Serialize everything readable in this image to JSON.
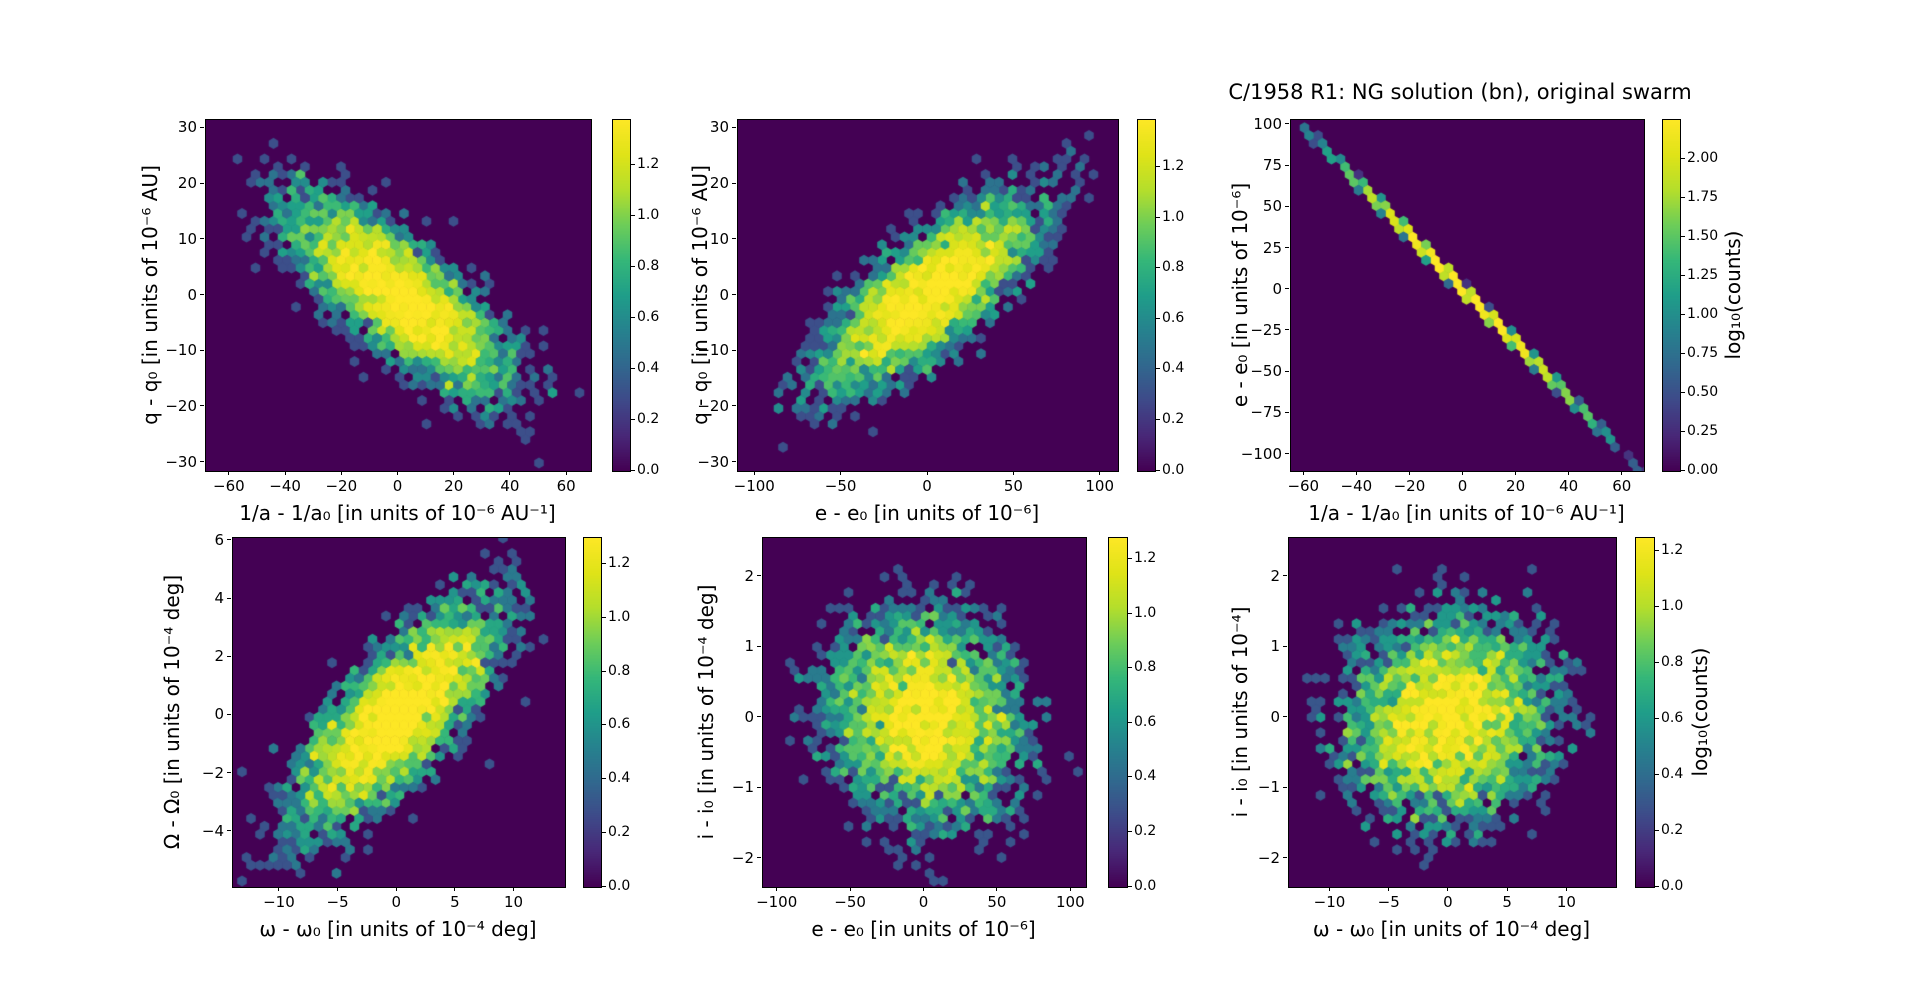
{
  "figure": {
    "title": "C/1958 R1: NG solution (bn), original swarm",
    "background": "#ffffff",
    "colormap": "viridis",
    "colormap_min_hex": "#440154",
    "colormap_max_hex": "#fde725"
  },
  "chart_data": [
    {
      "type": "hexbin",
      "xlabel": "1/a - 1/a₀ [in units of 10⁻⁶ AU⁻¹]",
      "ylabel": "q - q₀ [in units of 10⁻⁶ AU]",
      "xlim": [
        -68.5,
        68.5
      ],
      "ylim": [
        -31.5,
        31.5
      ],
      "xticks": [
        {
          "v": -60,
          "t": "−60"
        },
        {
          "v": -40,
          "t": "−40"
        },
        {
          "v": -20,
          "t": "−20"
        },
        {
          "v": 0,
          "t": "0"
        },
        {
          "v": 20,
          "t": "20"
        },
        {
          "v": 40,
          "t": "40"
        },
        {
          "v": 60,
          "t": "60"
        }
      ],
      "yticks": [
        {
          "v": 30,
          "t": "30"
        },
        {
          "v": 20,
          "t": "20"
        },
        {
          "v": 10,
          "t": "10"
        },
        {
          "v": 0,
          "t": "0"
        },
        {
          "v": -10,
          "t": "−10"
        },
        {
          "v": -20,
          "t": "−20"
        },
        {
          "v": -30,
          "t": "−30"
        }
      ],
      "colorbar": {
        "vmax": 1.38,
        "label": null,
        "ticks": [
          {
            "v": 0,
            "t": "0.0"
          },
          {
            "v": 0.2,
            "t": "0.2"
          },
          {
            "v": 0.4,
            "t": "0.4"
          },
          {
            "v": 0.6,
            "t": "0.6"
          },
          {
            "v": 0.8,
            "t": "0.8"
          },
          {
            "v": 1.0,
            "t": "1.0"
          },
          {
            "v": 1.2,
            "t": "1.2"
          }
        ]
      },
      "distribution": {
        "kind": "gaussian",
        "n": 5000,
        "center": [
          0,
          0
        ],
        "sigma_x": 21,
        "sigma_y": 9.3,
        "rho": -0.77
      }
    },
    {
      "type": "hexbin",
      "xlabel": "e - e₀ [in units of 10⁻⁶]",
      "ylabel": "q - q₀ [in units of 10⁻⁶ AU]",
      "xlim": [
        -110,
        110
      ],
      "ylim": [
        -31.5,
        31.5
      ],
      "xticks": [
        {
          "v": -100,
          "t": "−100"
        },
        {
          "v": -50,
          "t": "−50"
        },
        {
          "v": 0,
          "t": "0"
        },
        {
          "v": 50,
          "t": "50"
        },
        {
          "v": 100,
          "t": "100"
        }
      ],
      "yticks": [
        {
          "v": 30,
          "t": "30"
        },
        {
          "v": 20,
          "t": "20"
        },
        {
          "v": 10,
          "t": "10"
        },
        {
          "v": 0,
          "t": "0"
        },
        {
          "v": -10,
          "t": "−10"
        },
        {
          "v": -20,
          "t": "−20"
        },
        {
          "v": -30,
          "t": "−30"
        }
      ],
      "colorbar": {
        "vmax": 1.39,
        "label": null,
        "ticks": [
          {
            "v": 0,
            "t": "0.0"
          },
          {
            "v": 0.2,
            "t": "0.2"
          },
          {
            "v": 0.4,
            "t": "0.4"
          },
          {
            "v": 0.6,
            "t": "0.6"
          },
          {
            "v": 0.8,
            "t": "0.8"
          },
          {
            "v": 1.0,
            "t": "1.0"
          },
          {
            "v": 1.2,
            "t": "1.2"
          }
        ]
      },
      "distribution": {
        "kind": "gaussian",
        "n": 5000,
        "center": [
          0,
          0
        ],
        "sigma_x": 34,
        "sigma_y": 9.3,
        "rho": 0.77
      }
    },
    {
      "type": "hexbin",
      "xlabel": "1/a - 1/a₀ [in units of 10⁻⁶ AU⁻¹]",
      "ylabel": "e - e₀ [in units of 10⁻⁶]",
      "xlim": [
        -65,
        68
      ],
      "ylim": [
        -110,
        103
      ],
      "xticks": [
        {
          "v": -60,
          "t": "−60"
        },
        {
          "v": -40,
          "t": "−40"
        },
        {
          "v": -20,
          "t": "−20"
        },
        {
          "v": 0,
          "t": "0"
        },
        {
          "v": 20,
          "t": "20"
        },
        {
          "v": 40,
          "t": "40"
        },
        {
          "v": 60,
          "t": "60"
        }
      ],
      "yticks": [
        {
          "v": 100,
          "t": "100"
        },
        {
          "v": 75,
          "t": "75"
        },
        {
          "v": 50,
          "t": "50"
        },
        {
          "v": 25,
          "t": "25"
        },
        {
          "v": 0,
          "t": "0"
        },
        {
          "v": -25,
          "t": "−25"
        },
        {
          "v": -50,
          "t": "−50"
        },
        {
          "v": -75,
          "t": "−75"
        },
        {
          "v": -100,
          "t": "−100"
        }
      ],
      "colorbar": {
        "vmax": 2.25,
        "label": "log₁₀(counts)",
        "ticks": [
          {
            "v": 0,
            "t": "0.00"
          },
          {
            "v": 0.25,
            "t": "0.25"
          },
          {
            "v": 0.5,
            "t": "0.50"
          },
          {
            "v": 0.75,
            "t": "0.75"
          },
          {
            "v": 1.0,
            "t": "1.00"
          },
          {
            "v": 1.25,
            "t": "1.25"
          },
          {
            "v": 1.5,
            "t": "1.50"
          },
          {
            "v": 1.75,
            "t": "1.75"
          },
          {
            "v": 2.0,
            "t": "2.00"
          }
        ]
      },
      "distribution": {
        "kind": "line",
        "n": 5000,
        "slope": -1.64,
        "intercept": 0,
        "sigma_x": 22,
        "jitter_y": 0.5
      }
    },
    {
      "type": "hexbin",
      "xlabel": "ω - ω₀ [in units of 10⁻⁴ deg]",
      "ylabel": "Ω - Ω₀ [in units of 10⁻⁴ deg]",
      "xlim": [
        -14,
        14.3
      ],
      "ylim": [
        -5.9,
        6.1
      ],
      "xticks": [
        {
          "v": -10,
          "t": "−10"
        },
        {
          "v": -5,
          "t": "−5"
        },
        {
          "v": 0,
          "t": "0"
        },
        {
          "v": 5,
          "t": "5"
        },
        {
          "v": 10,
          "t": "10"
        }
      ],
      "yticks": [
        {
          "v": 6,
          "t": "6"
        },
        {
          "v": 4,
          "t": "4"
        },
        {
          "v": 2,
          "t": "2"
        },
        {
          "v": 0,
          "t": "0"
        },
        {
          "v": -2,
          "t": "−2"
        },
        {
          "v": -4,
          "t": "−4"
        }
      ],
      "colorbar": {
        "vmax": 1.3,
        "label": null,
        "ticks": [
          {
            "v": 0,
            "t": "0.0"
          },
          {
            "v": 0.2,
            "t": "0.2"
          },
          {
            "v": 0.4,
            "t": "0.4"
          },
          {
            "v": 0.6,
            "t": "0.6"
          },
          {
            "v": 0.8,
            "t": "0.8"
          },
          {
            "v": 1.0,
            "t": "1.0"
          },
          {
            "v": 1.2,
            "t": "1.2"
          }
        ]
      },
      "distribution": {
        "kind": "gaussian",
        "n": 5000,
        "center": [
          0,
          0
        ],
        "sigma_x": 4.6,
        "sigma_y": 2.05,
        "rho": 0.75
      }
    },
    {
      "type": "hexbin",
      "xlabel": "e - e₀ [in units of 10⁻⁶]",
      "ylabel": "i - i₀ [in units of 10⁻⁴ deg]",
      "xlim": [
        -110,
        110
      ],
      "ylim": [
        -2.4,
        2.55
      ],
      "xticks": [
        {
          "v": -100,
          "t": "−100"
        },
        {
          "v": -50,
          "t": "−50"
        },
        {
          "v": 0,
          "t": "0"
        },
        {
          "v": 50,
          "t": "50"
        },
        {
          "v": 100,
          "t": "100"
        }
      ],
      "yticks": [
        {
          "v": 2,
          "t": "2"
        },
        {
          "v": 1,
          "t": "1"
        },
        {
          "v": 0,
          "t": "0"
        },
        {
          "v": -1,
          "t": "−1"
        },
        {
          "v": -2,
          "t": "−2"
        }
      ],
      "colorbar": {
        "vmax": 1.28,
        "label": null,
        "ticks": [
          {
            "v": 0,
            "t": "0.0"
          },
          {
            "v": 0.2,
            "t": "0.2"
          },
          {
            "v": 0.4,
            "t": "0.4"
          },
          {
            "v": 0.6,
            "t": "0.6"
          },
          {
            "v": 0.8,
            "t": "0.8"
          },
          {
            "v": 1.0,
            "t": "1.0"
          },
          {
            "v": 1.2,
            "t": "1.2"
          }
        ]
      },
      "distribution": {
        "kind": "gaussian",
        "n": 5000,
        "center": [
          0,
          0
        ],
        "sigma_x": 34,
        "sigma_y": 0.78,
        "rho": -0.12
      }
    },
    {
      "type": "hexbin",
      "xlabel": "ω - ω₀ [in units of 10⁻⁴ deg]",
      "ylabel": "i - i₀ [in units of 10⁻⁴]",
      "xlim": [
        -13.5,
        14.1
      ],
      "ylim": [
        -2.4,
        2.55
      ],
      "xticks": [
        {
          "v": -10,
          "t": "−10"
        },
        {
          "v": -5,
          "t": "−5"
        },
        {
          "v": 0,
          "t": "0"
        },
        {
          "v": 5,
          "t": "5"
        },
        {
          "v": 10,
          "t": "10"
        }
      ],
      "yticks": [
        {
          "v": 2,
          "t": "2"
        },
        {
          "v": 1,
          "t": "1"
        },
        {
          "v": 0,
          "t": "0"
        },
        {
          "v": -1,
          "t": "−1"
        },
        {
          "v": -2,
          "t": "−2"
        }
      ],
      "colorbar": {
        "vmax": 1.25,
        "label": "log₁₀(counts)",
        "ticks": [
          {
            "v": 0,
            "t": "0.0"
          },
          {
            "v": 0.2,
            "t": "0.2"
          },
          {
            "v": 0.4,
            "t": "0.4"
          },
          {
            "v": 0.6,
            "t": "0.6"
          },
          {
            "v": 0.8,
            "t": "0.8"
          },
          {
            "v": 1.0,
            "t": "1.0"
          },
          {
            "v": 1.2,
            "t": "1.2"
          }
        ]
      },
      "distribution": {
        "kind": "gaussian",
        "n": 5000,
        "center": [
          0,
          0
        ],
        "sigma_x": 4.6,
        "sigma_y": 0.78,
        "rho": 0.08
      }
    }
  ]
}
